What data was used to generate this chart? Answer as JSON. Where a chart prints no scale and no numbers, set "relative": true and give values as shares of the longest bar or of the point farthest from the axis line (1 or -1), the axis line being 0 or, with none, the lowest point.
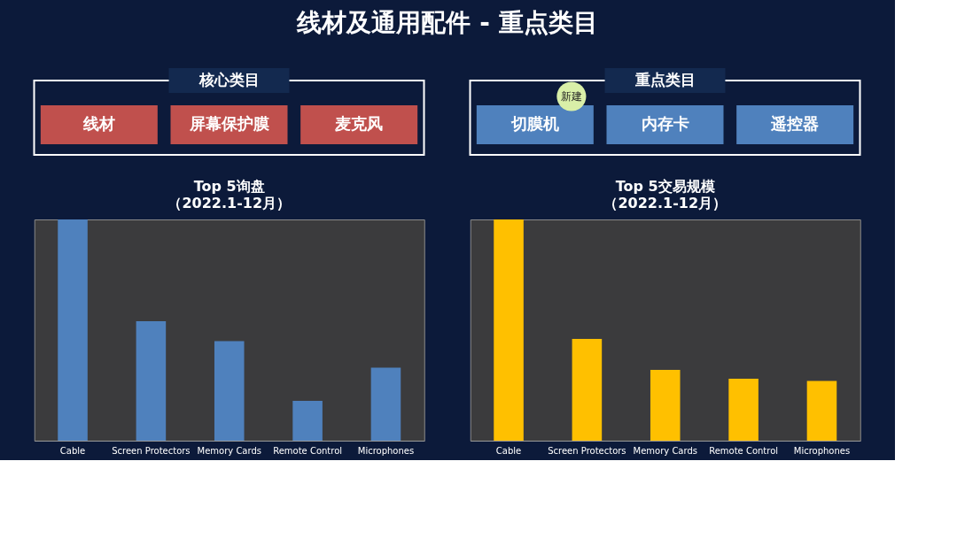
{
  "chart_data": [
    {
      "type": "other",
      "title": "线材及通用配件 - 重点类目"
    },
    {
      "type": "other",
      "title": "核心类目",
      "categories": [
        "线材",
        "屏幕保护膜",
        "麦克风"
      ],
      "colors": [
        "#c0504d",
        "#c0504d",
        "#c0504d"
      ]
    },
    {
      "type": "other",
      "title": "重点类目",
      "categories": [
        "切膜机",
        "内存卡",
        "遥控器"
      ],
      "colors": [
        "#4f81bd",
        "#4f81bd",
        "#4f81bd"
      ],
      "annotations": [
        {
          "text": "新建",
          "x": "切膜机"
        }
      ]
    },
    {
      "type": "bar",
      "title": "Top 5询盘",
      "subtitle": "（2022.1-12月）",
      "relative": true,
      "categories": [
        "Cable",
        "Screen Protectors",
        "Memory Cards",
        "Remote Control",
        "Microphones"
      ],
      "series": [
        {
          "color": "#4f81bd",
          "values": [
            1,
            0.54,
            0.45,
            0.18,
            0.33
          ]
        }
      ]
    },
    {
      "type": "bar",
      "title": "Top 5交易规模",
      "subtitle": "（2022.1-12月）",
      "relative": true,
      "categories": [
        "Cable",
        "Screen Protectors",
        "Memory Cards",
        "Remote Control",
        "Microphones"
      ],
      "series": [
        {
          "color": "#ffc000",
          "values": [
            1,
            0.46,
            0.32,
            0.28,
            0.27
          ]
        }
      ]
    }
  ]
}
